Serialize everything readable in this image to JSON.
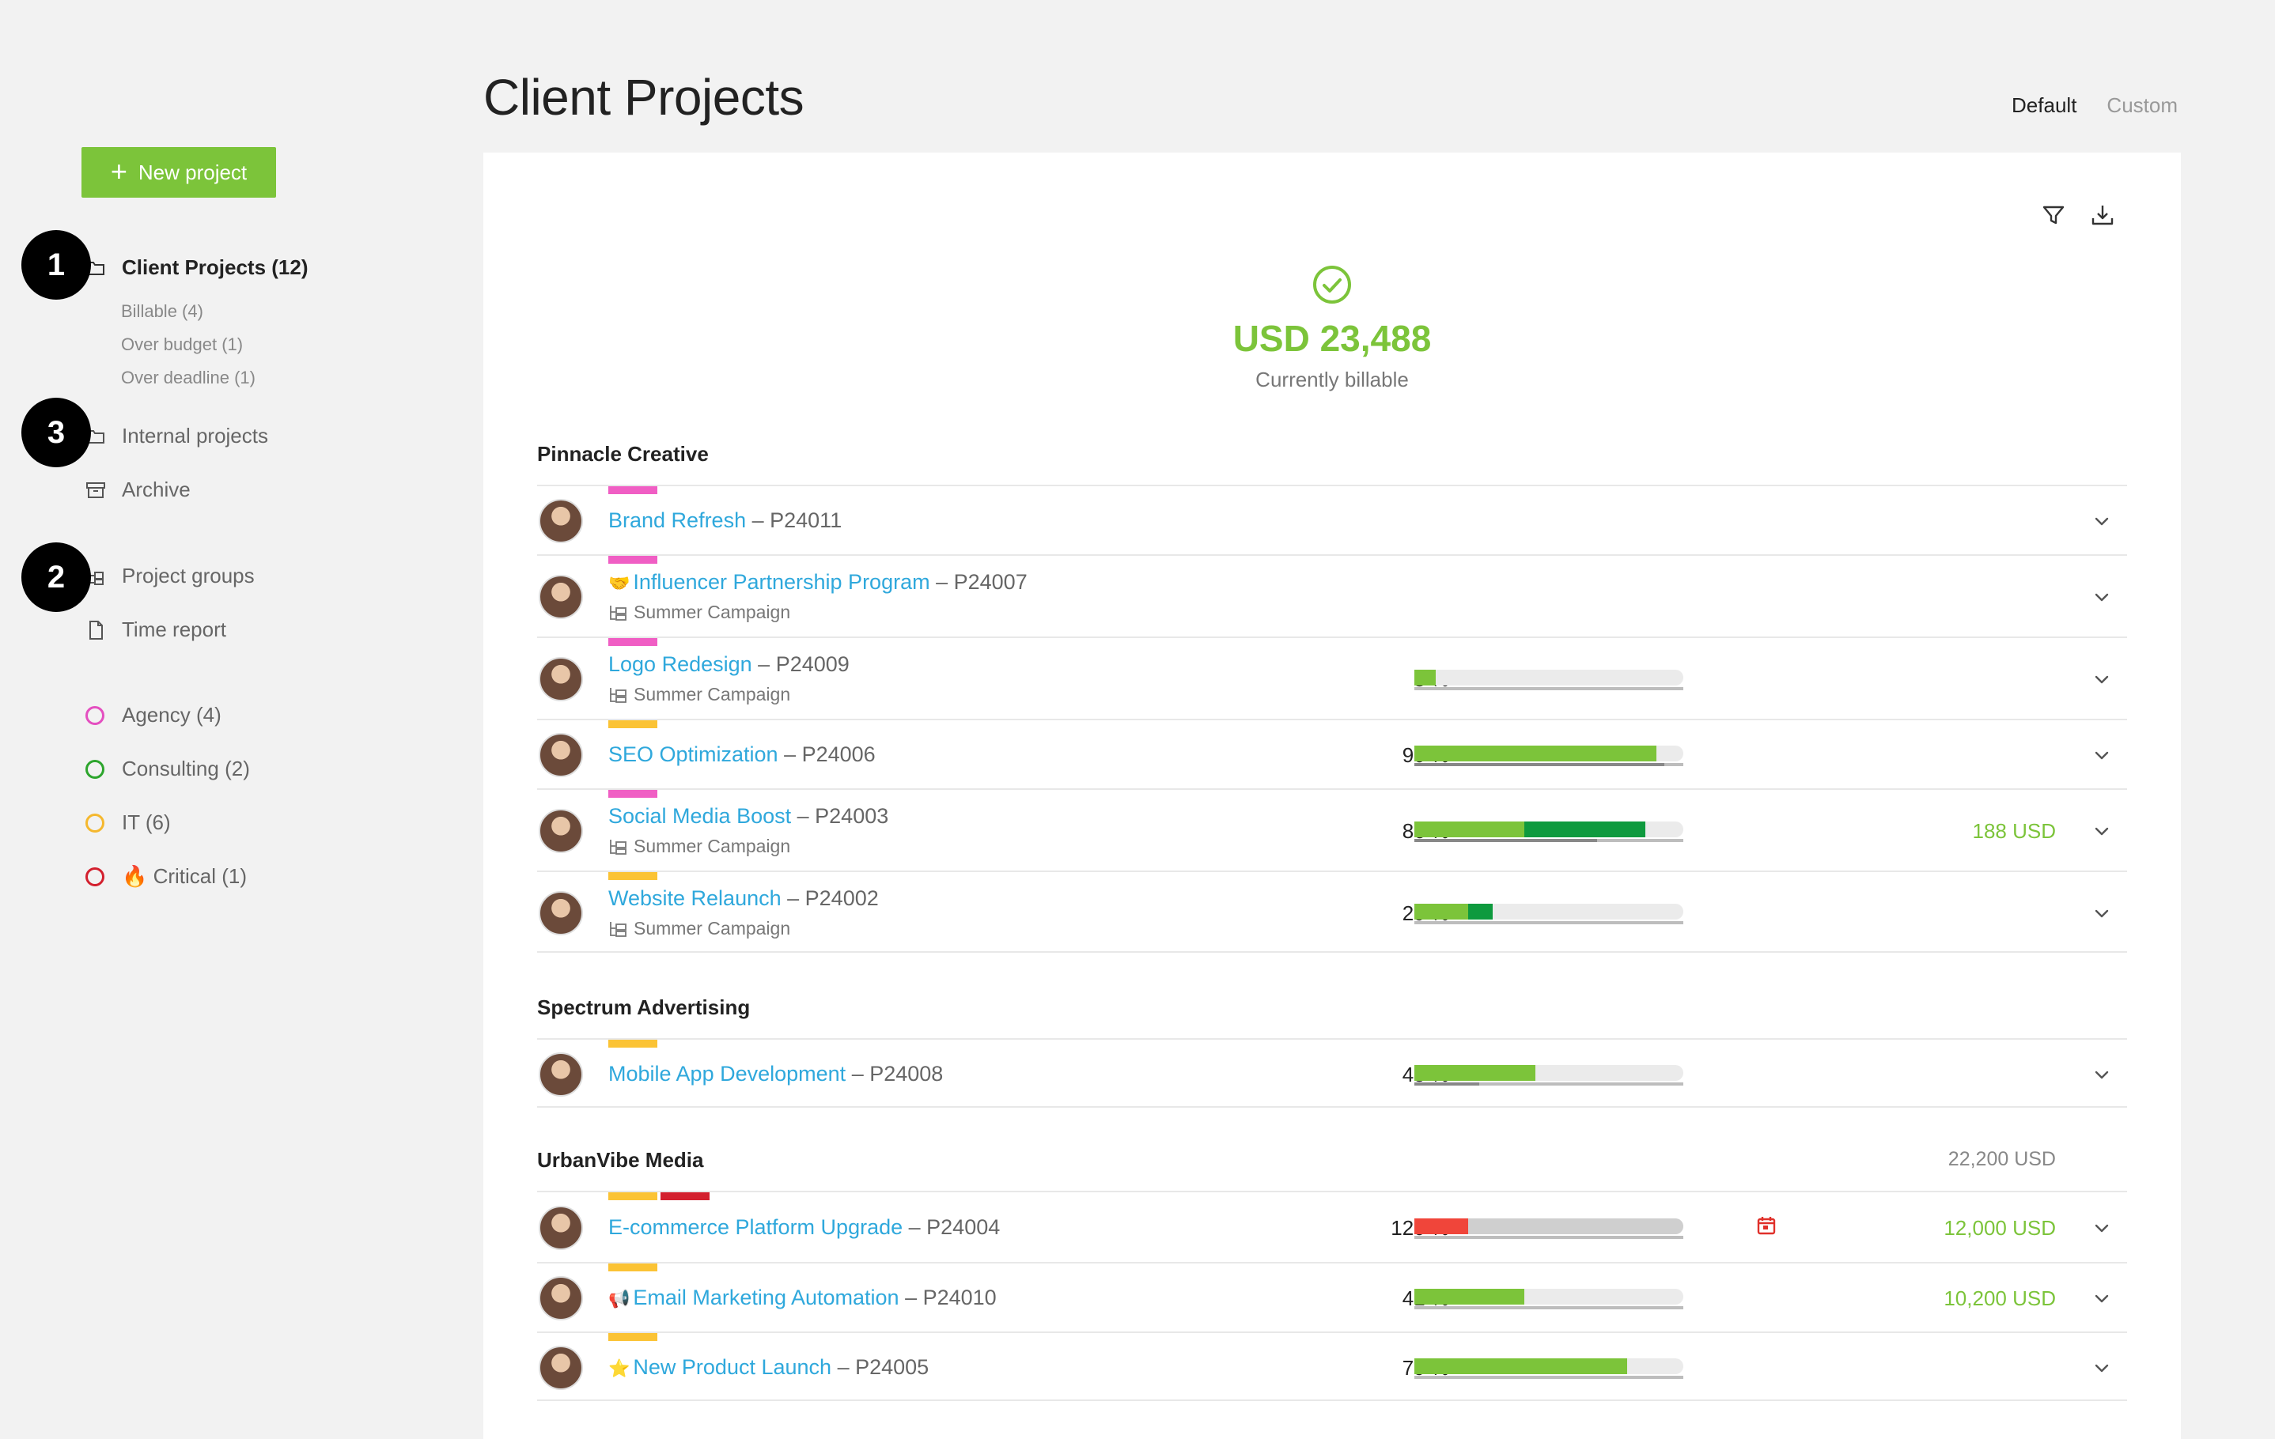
{
  "sidebar": {
    "new_project_label": "New project",
    "nav": {
      "client_projects": "Client Projects (12)",
      "billable": "Billable (4)",
      "over_budget": "Over budget (1)",
      "over_deadline": "Over deadline (1)",
      "internal_projects": "Internal projects",
      "archive": "Archive",
      "project_groups": "Project groups",
      "time_report": "Time report"
    },
    "tags": [
      {
        "label": "Agency (4)",
        "color": "#e44fc0"
      },
      {
        "label": "Consulting (2)",
        "color": "#2da52d"
      },
      {
        "label": "IT (6)",
        "color": "#f5b82e"
      },
      {
        "label": "🔥 Critical (1)",
        "color": "#d3202e"
      }
    ],
    "badges": [
      "1",
      "3",
      "2"
    ]
  },
  "header": {
    "title": "Client Projects",
    "views": [
      "Default",
      "Custom"
    ]
  },
  "summary": {
    "amount": "USD 23,488",
    "caption": "Currently billable"
  },
  "colors": {
    "accent": "#7cc43a",
    "link": "#2fa8dc",
    "pink": "#f05ec4",
    "yellow": "#fbc335",
    "red": "#d3202e",
    "dark_green": "#0e9a3e",
    "over": "#f0453a"
  },
  "groups": [
    {
      "name": "Pinnacle Creative",
      "total": "",
      "projects": [
        {
          "name": "Brand Refresh",
          "code": "– P24011",
          "emoji": "",
          "group": "",
          "pct": "",
          "progress": null,
          "amount": "",
          "tags": [
            "pink"
          ]
        },
        {
          "name": "Influencer Partnership Program",
          "code": "– P24007",
          "emoji": "🤝",
          "group": "Summer Campaign",
          "pct": "",
          "progress": null,
          "amount": "",
          "tags": [
            "pink"
          ]
        },
        {
          "name": "Logo Redesign",
          "code": "– P24009",
          "emoji": "",
          "group": "Summer Campaign",
          "pct": "8 %",
          "progress": 0.08,
          "amount": "",
          "tags": [
            "pink"
          ]
        },
        {
          "name": "SEO Optimization",
          "code": "– P24006",
          "emoji": "",
          "group": "",
          "pct": "90 %",
          "progress": 0.9,
          "amount": "",
          "tags": [
            "yellow"
          ]
        },
        {
          "name": "Social Media Boost",
          "code": "– P24003",
          "emoji": "",
          "group": "Summer Campaign",
          "pct": "86 %",
          "progress": 0.86,
          "amount": "188 USD",
          "tags": [
            "pink"
          ]
        },
        {
          "name": "Website Relaunch",
          "code": "– P24002",
          "emoji": "",
          "group": "Summer Campaign",
          "pct": "29 %",
          "progress": 0.29,
          "amount": "",
          "tags": [
            "yellow"
          ]
        }
      ]
    },
    {
      "name": "Spectrum Advertising",
      "total": "",
      "projects": [
        {
          "name": "Mobile App Development",
          "code": "– P24008",
          "emoji": "",
          "group": "",
          "pct": "45 %",
          "progress": 0.45,
          "amount": "",
          "tags": [
            "yellow"
          ]
        }
      ]
    },
    {
      "name": "UrbanVibe Media",
      "total": "22,200 USD",
      "projects": [
        {
          "name": "E-commerce Platform Upgrade",
          "code": "– P24004",
          "emoji": "",
          "group": "",
          "pct": "120 %",
          "progress": 1.2,
          "amount": "12,000 USD",
          "tags": [
            "yellow",
            "red"
          ]
        },
        {
          "name": "Email Marketing Automation",
          "code": "– P24010",
          "emoji": "📢",
          "group": "",
          "pct": "41 %",
          "progress": 0.41,
          "amount": "10,200 USD",
          "tags": [
            "yellow"
          ]
        },
        {
          "name": "New Product Launch",
          "code": "– P24005",
          "emoji": "⭐",
          "group": "",
          "pct": "79 %",
          "progress": 0.79,
          "amount": "",
          "tags": [
            "yellow"
          ]
        }
      ]
    }
  ]
}
